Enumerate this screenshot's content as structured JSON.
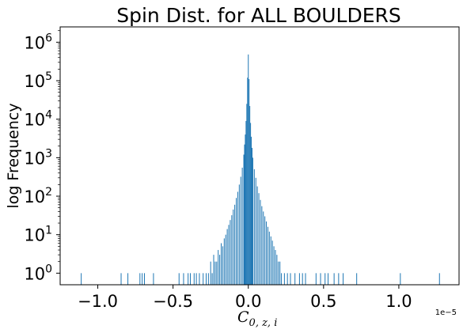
{
  "chart_data": {
    "type": "bar",
    "title": "Spin Dist. for ALL BOULDERS",
    "ylabel": "log Frequency",
    "xlabel_main": "C",
    "xlabel_sub": "0, z, i",
    "x_offset_label": "1e−5",
    "yscale": "log",
    "xlim": [
      -1.25,
      1.4
    ],
    "ylim": [
      0.5,
      2500000
    ],
    "xticks": [
      -1.0,
      -0.5,
      0.0,
      0.5,
      1.0
    ],
    "xtick_labels": [
      "−1.0",
      "−0.5",
      "0.0",
      "0.5",
      "1.0"
    ],
    "ytick_exponents": [
      0,
      1,
      2,
      3,
      4,
      5,
      6
    ],
    "bar_color": "#1f77b4",
    "bin_width": 0.005,
    "bins": [
      [
        -1.11,
        1
      ],
      [
        -0.845,
        1
      ],
      [
        -0.8,
        1
      ],
      [
        -0.72,
        1
      ],
      [
        -0.705,
        1
      ],
      [
        -0.69,
        1
      ],
      [
        -0.63,
        1
      ],
      [
        -0.46,
        1
      ],
      [
        -0.43,
        1
      ],
      [
        -0.4,
        1
      ],
      [
        -0.385,
        1
      ],
      [
        -0.36,
        1
      ],
      [
        -0.345,
        1
      ],
      [
        -0.325,
        1
      ],
      [
        -0.3,
        1
      ],
      [
        -0.28,
        1
      ],
      [
        -0.265,
        1
      ],
      [
        -0.25,
        2
      ],
      [
        -0.24,
        1
      ],
      [
        -0.23,
        3
      ],
      [
        -0.22,
        2
      ],
      [
        -0.21,
        2
      ],
      [
        -0.2,
        4
      ],
      [
        -0.19,
        3
      ],
      [
        -0.18,
        6
      ],
      [
        -0.17,
        5
      ],
      [
        -0.16,
        8
      ],
      [
        -0.15,
        10
      ],
      [
        -0.14,
        14
      ],
      [
        -0.13,
        18
      ],
      [
        -0.12,
        24
      ],
      [
        -0.11,
        32
      ],
      [
        -0.1,
        45
      ],
      [
        -0.09,
        60
      ],
      [
        -0.08,
        90
      ],
      [
        -0.07,
        130
      ],
      [
        -0.06,
        200
      ],
      [
        -0.05,
        320
      ],
      [
        -0.04,
        550
      ],
      [
        -0.03,
        1200
      ],
      [
        -0.025,
        2200
      ],
      [
        -0.02,
        4000
      ],
      [
        -0.015,
        9000
      ],
      [
        -0.01,
        25000
      ],
      [
        -0.005,
        120000
      ],
      [
        0.0,
        480000
      ],
      [
        0.005,
        110000
      ],
      [
        0.01,
        22000
      ],
      [
        0.015,
        8000
      ],
      [
        0.02,
        3500
      ],
      [
        0.025,
        1800
      ],
      [
        0.03,
        1000
      ],
      [
        0.04,
        500
      ],
      [
        0.05,
        300
      ],
      [
        0.06,
        180
      ],
      [
        0.07,
        120
      ],
      [
        0.08,
        80
      ],
      [
        0.09,
        55
      ],
      [
        0.1,
        40
      ],
      [
        0.11,
        30
      ],
      [
        0.12,
        22
      ],
      [
        0.13,
        16
      ],
      [
        0.14,
        12
      ],
      [
        0.15,
        9
      ],
      [
        0.16,
        7
      ],
      [
        0.17,
        5
      ],
      [
        0.18,
        4
      ],
      [
        0.19,
        3
      ],
      [
        0.2,
        2
      ],
      [
        0.21,
        2
      ],
      [
        0.22,
        1
      ],
      [
        0.24,
        1
      ],
      [
        0.26,
        1
      ],
      [
        0.28,
        1
      ],
      [
        0.31,
        1
      ],
      [
        0.34,
        1
      ],
      [
        0.36,
        1
      ],
      [
        0.38,
        1
      ],
      [
        0.45,
        1
      ],
      [
        0.48,
        1
      ],
      [
        0.51,
        1
      ],
      [
        0.53,
        1
      ],
      [
        0.57,
        1
      ],
      [
        0.6,
        1
      ],
      [
        0.63,
        1
      ],
      [
        0.72,
        1
      ],
      [
        1.01,
        1
      ],
      [
        1.27,
        1
      ]
    ]
  }
}
